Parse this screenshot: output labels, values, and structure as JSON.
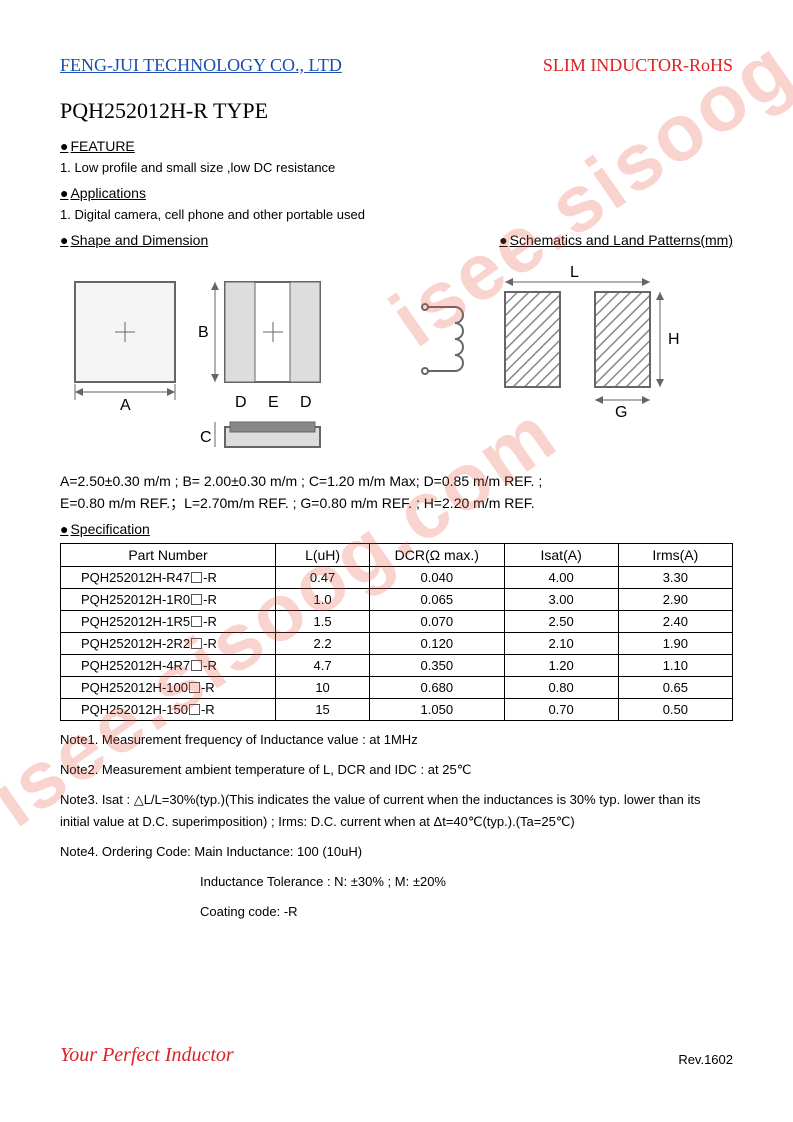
{
  "header": {
    "company": "FENG-JUI TECHNOLOGY CO., LTD",
    "product_type": "SLIM INDUCTOR-RoHS"
  },
  "title": "PQH252012H-R TYPE",
  "sections": {
    "feature_head": "FEATURE",
    "feature_item": "1.   Low profile and small size ,low DC resistance",
    "applications_head": "Applications",
    "applications_item": "1.   Digital camera, cell phone and other portable used",
    "shape_head": "Shape and Dimension",
    "schematic_head": "Schematics and Land Patterns(mm)",
    "specification_head": "Specification"
  },
  "diagram_labels": {
    "A": "A",
    "B": "B",
    "C": "C",
    "D": "D",
    "E": "E",
    "G": "G",
    "H": "H",
    "L": "L"
  },
  "dimensions": {
    "line1": "A=2.50±0.30 m/m ; B= 2.00±0.30 m/m ; C=1.20 m/m Max; D=0.85 m/m REF. ;",
    "line2": "E=0.80 m/m REF.；L=2.70m/m REF. ; G=0.80 m/m REF. ; H=2.20 m/m REF."
  },
  "table": {
    "headers": [
      "Part Number",
      "L(uH)",
      "DCR(Ω max.)",
      "Isat(A)",
      "Irms(A)"
    ],
    "rows": [
      [
        "PQH252012H-R47",
        "0.47",
        "0.040",
        "4.00",
        "3.30"
      ],
      [
        "PQH252012H-1R0",
        "1.0",
        "0.065",
        "3.00",
        "2.90"
      ],
      [
        "PQH252012H-1R5",
        "1.5",
        "0.070",
        "2.50",
        "2.40"
      ],
      [
        "PQH252012H-2R2",
        "2.2",
        "0.120",
        "2.10",
        "1.90"
      ],
      [
        "PQH252012H-4R7",
        "4.7",
        "0.350",
        "1.20",
        "1.10"
      ],
      [
        "PQH252012H-100",
        "10",
        "0.680",
        "0.80",
        "0.65"
      ],
      [
        "PQH252012H-150",
        "15",
        "1.050",
        "0.70",
        "0.50"
      ]
    ],
    "col_widths": [
      "32%",
      "14%",
      "20%",
      "17%",
      "17%"
    ]
  },
  "notes": {
    "n1": "Note1. Measurement frequency of Inductance value : at 1MHz",
    "n2": "Note2. Measurement ambient temperature of L, DCR and IDC : at 25℃",
    "n3": "Note3. Isat : △L/L=30%(typ.)(This indicates the value of current when the inductances is 30% typ. lower than its initial value at D.C. superimposition) ; Irms: D.C. current when at Δt=40℃(typ.).(Ta=25℃)",
    "n4a": "Note4. Ordering Code: Main Inductance: 100 (10uH)",
    "n4b": "Inductance Tolerance : N: ±30% ; M: ±20%",
    "n4c": "Coating code: -R"
  },
  "footer": {
    "slogan": "Your Perfect Inductor",
    "rev": "Rev.1602"
  },
  "watermark": "isee.sisoog.com",
  "colors": {
    "link_blue": "#1a4db3",
    "brand_red": "#d22",
    "diagram_stroke": "#666",
    "hatch": "#888"
  }
}
